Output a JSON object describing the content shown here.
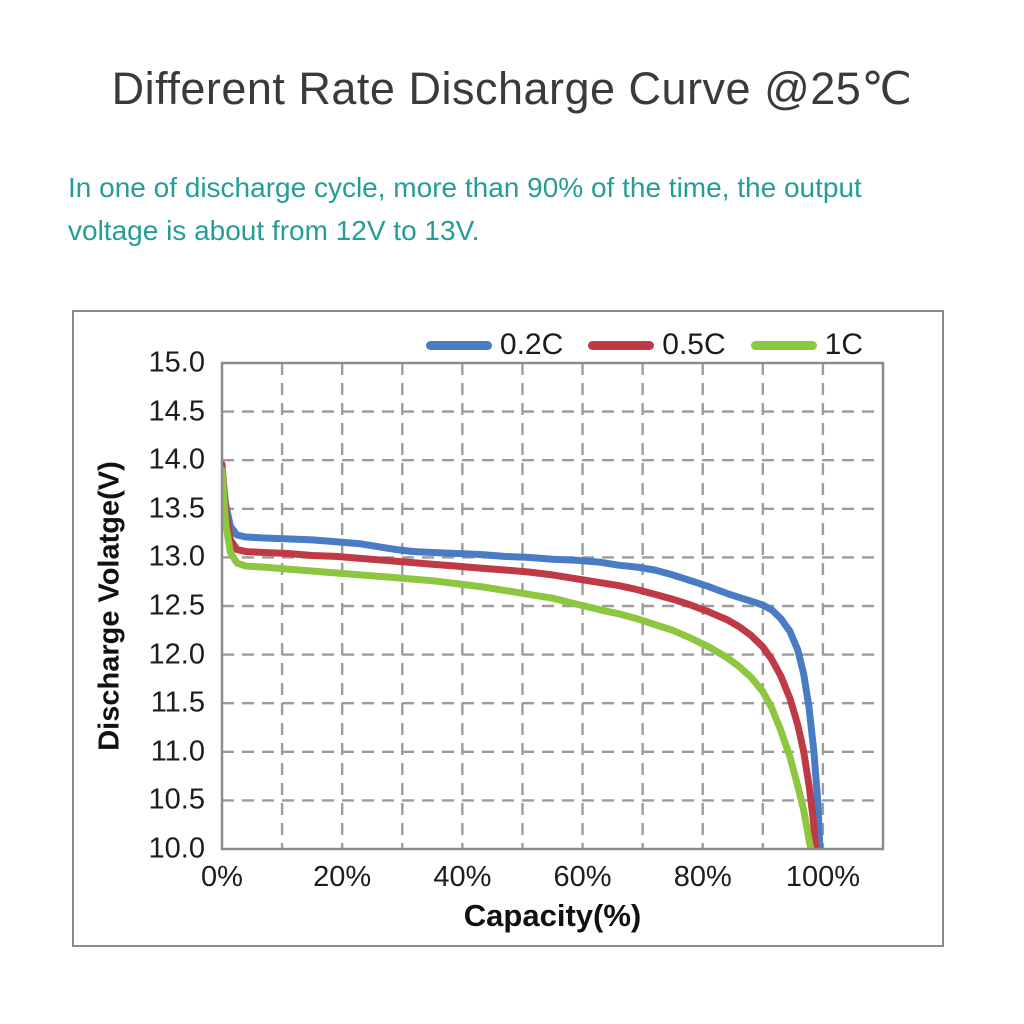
{
  "title": "Different Rate Discharge Curve @25℃",
  "subtitle": {
    "line1": "In one of discharge cycle, more than 90% of the time, the output",
    "line2": "voltage is about from 12V to 13V."
  },
  "colors": {
    "title_text": "#3a3a3a",
    "subtitle_text": "#249d99",
    "grid": "#9c9c9c",
    "plot_border": "#8c8c8c",
    "panel_border": "#8a8a8a",
    "tick_text": "#1d1d1d"
  },
  "chart_data": {
    "type": "line",
    "title": "",
    "xlabel": "Capacity(%)",
    "ylabel": "Discharge Volatge(V)",
    "xlim": [
      0,
      110
    ],
    "ylim": [
      10.0,
      15.0
    ],
    "x_grid_step": 10,
    "y_grid_step": 0.5,
    "grid": "dashed",
    "legend_position": "top",
    "x_ticks": [
      {
        "value": 0,
        "label": "0%"
      },
      {
        "value": 20,
        "label": "20%"
      },
      {
        "value": 40,
        "label": "40%"
      },
      {
        "value": 60,
        "label": "60%"
      },
      {
        "value": 80,
        "label": "80%"
      },
      {
        "value": 100,
        "label": "100%"
      }
    ],
    "y_ticks": [
      {
        "value": 15.0,
        "label": "15.0"
      },
      {
        "value": 14.5,
        "label": "14.5"
      },
      {
        "value": 14.0,
        "label": "14.0"
      },
      {
        "value": 13.5,
        "label": "13.5"
      },
      {
        "value": 13.0,
        "label": "13.0"
      },
      {
        "value": 12.5,
        "label": "12.5"
      },
      {
        "value": 12.0,
        "label": "12.0"
      },
      {
        "value": 11.5,
        "label": "11.5"
      },
      {
        "value": 11.0,
        "label": "11.0"
      },
      {
        "value": 10.5,
        "label": "10.5"
      },
      {
        "value": 10.0,
        "label": "10.0"
      }
    ],
    "series": [
      {
        "name": "0.2C",
        "color": "#4a7cc6",
        "points": [
          [
            0,
            13.88
          ],
          [
            0.6,
            13.55
          ],
          [
            1.4,
            13.32
          ],
          [
            2.5,
            13.23
          ],
          [
            4,
            13.21
          ],
          [
            7,
            13.2
          ],
          [
            11,
            13.19
          ],
          [
            15,
            13.18
          ],
          [
            19,
            13.16
          ],
          [
            23,
            13.14
          ],
          [
            26,
            13.11
          ],
          [
            29,
            13.08
          ],
          [
            32,
            13.06
          ],
          [
            35,
            13.05
          ],
          [
            39,
            13.04
          ],
          [
            43,
            13.03
          ],
          [
            47,
            13.01
          ],
          [
            51,
            13.0
          ],
          [
            55,
            12.98
          ],
          [
            59,
            12.97
          ],
          [
            63,
            12.95
          ],
          [
            66,
            12.92
          ],
          [
            69,
            12.9
          ],
          [
            72,
            12.87
          ],
          [
            75,
            12.82
          ],
          [
            78,
            12.76
          ],
          [
            81,
            12.7
          ],
          [
            84,
            12.63
          ],
          [
            86,
            12.59
          ],
          [
            88,
            12.55
          ],
          [
            90,
            12.51
          ],
          [
            91.5,
            12.46
          ],
          [
            93,
            12.37
          ],
          [
            94.5,
            12.24
          ],
          [
            95.8,
            12.05
          ],
          [
            96.8,
            11.8
          ],
          [
            97.7,
            11.45
          ],
          [
            98.5,
            11.0
          ],
          [
            99.2,
            10.45
          ],
          [
            99.5,
            10.0
          ]
        ]
      },
      {
        "name": "0.5C",
        "color": "#c03a46",
        "points": [
          [
            0,
            13.96
          ],
          [
            0.6,
            13.48
          ],
          [
            1.4,
            13.18
          ],
          [
            2.5,
            13.08
          ],
          [
            4,
            13.06
          ],
          [
            7,
            13.05
          ],
          [
            11,
            13.04
          ],
          [
            15,
            13.02
          ],
          [
            19,
            13.01
          ],
          [
            23,
            12.99
          ],
          [
            27,
            12.97
          ],
          [
            31,
            12.95
          ],
          [
            35,
            12.93
          ],
          [
            39,
            12.91
          ],
          [
            43,
            12.89
          ],
          [
            47,
            12.87
          ],
          [
            51,
            12.85
          ],
          [
            55,
            12.82
          ],
          [
            59,
            12.78
          ],
          [
            63,
            12.74
          ],
          [
            66,
            12.71
          ],
          [
            69,
            12.67
          ],
          [
            72,
            12.62
          ],
          [
            75,
            12.57
          ],
          [
            78,
            12.51
          ],
          [
            81,
            12.44
          ],
          [
            84,
            12.36
          ],
          [
            86,
            12.29
          ],
          [
            88,
            12.2
          ],
          [
            90,
            12.08
          ],
          [
            91.5,
            11.95
          ],
          [
            93,
            11.78
          ],
          [
            94.5,
            11.55
          ],
          [
            95.8,
            11.28
          ],
          [
            96.8,
            11.0
          ],
          [
            97.7,
            10.65
          ],
          [
            98.4,
            10.3
          ],
          [
            98.8,
            10.0
          ]
        ]
      },
      {
        "name": "1C",
        "color": "#8dc63f",
        "points": [
          [
            0,
            13.9
          ],
          [
            0.6,
            13.35
          ],
          [
            1.4,
            13.05
          ],
          [
            2.5,
            12.94
          ],
          [
            4,
            12.91
          ],
          [
            7,
            12.9
          ],
          [
            11,
            12.88
          ],
          [
            15,
            12.86
          ],
          [
            19,
            12.84
          ],
          [
            23,
            12.82
          ],
          [
            27,
            12.8
          ],
          [
            31,
            12.78
          ],
          [
            35,
            12.76
          ],
          [
            39,
            12.73
          ],
          [
            43,
            12.7
          ],
          [
            47,
            12.66
          ],
          [
            51,
            12.62
          ],
          [
            55,
            12.58
          ],
          [
            59,
            12.52
          ],
          [
            63,
            12.46
          ],
          [
            66,
            12.42
          ],
          [
            69,
            12.37
          ],
          [
            72,
            12.31
          ],
          [
            75,
            12.25
          ],
          [
            78,
            12.17
          ],
          [
            81,
            12.08
          ],
          [
            84,
            11.97
          ],
          [
            86,
            11.88
          ],
          [
            88,
            11.77
          ],
          [
            90,
            11.62
          ],
          [
            91.5,
            11.45
          ],
          [
            93,
            11.22
          ],
          [
            94.5,
            10.95
          ],
          [
            95.8,
            10.65
          ],
          [
            96.8,
            10.4
          ],
          [
            97.6,
            10.12
          ],
          [
            98,
            10.0
          ]
        ]
      }
    ]
  }
}
